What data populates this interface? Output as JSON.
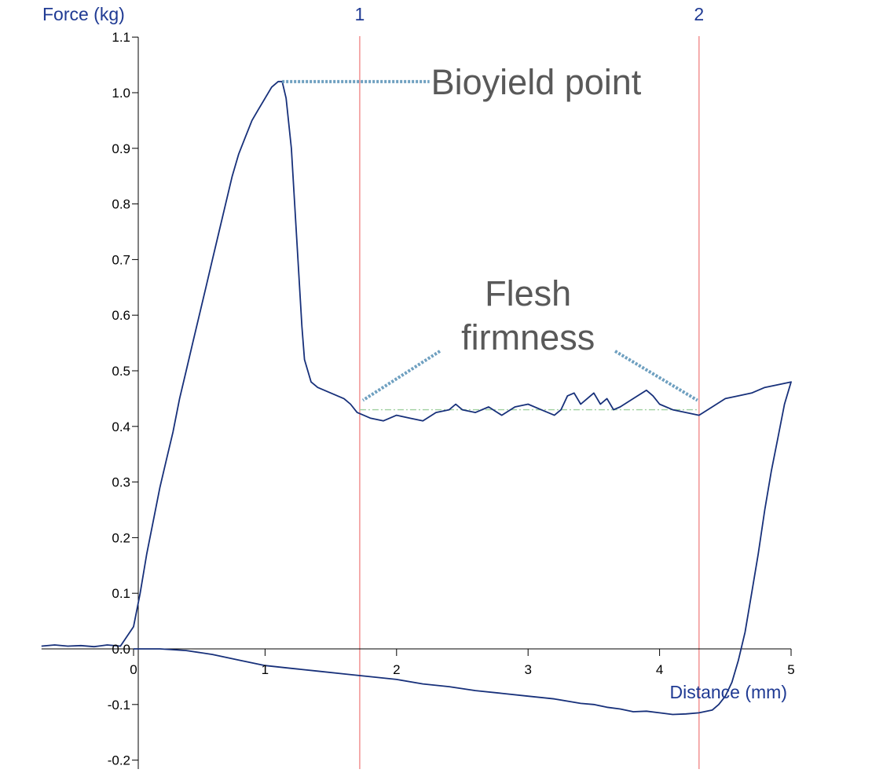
{
  "chart_data": {
    "type": "line",
    "title": "",
    "xlabel": "Distance (mm)",
    "ylabel": "Force (kg)",
    "xlim": [
      -0.7,
      5.05
    ],
    "ylim": [
      -0.2,
      1.1
    ],
    "x_ticks": [
      0,
      1,
      2,
      3,
      4,
      5
    ],
    "y_ticks": [
      -0.2,
      -0.1,
      0.0,
      0.1,
      0.2,
      0.3,
      0.4,
      0.5,
      0.6,
      0.7,
      0.8,
      0.9,
      1.0,
      1.1
    ],
    "x_tick_labels": [
      "0",
      "1",
      "2",
      "3",
      "4",
      "5"
    ],
    "y_tick_labels": [
      "-0.2",
      "-0.1",
      "0.0",
      "0.1",
      "0.2",
      "0.3",
      "0.4",
      "0.5",
      "0.6",
      "0.7",
      "0.8",
      "0.9",
      "1.0",
      "1.1"
    ],
    "grid": false,
    "series": [
      {
        "points": [
          [
            -0.7,
            0.005
          ],
          [
            -0.6,
            0.007
          ],
          [
            -0.5,
            0.005
          ],
          [
            -0.4,
            0.006
          ],
          [
            -0.3,
            0.004
          ],
          [
            -0.2,
            0.007
          ],
          [
            -0.1,
            0.005
          ],
          [
            0.0,
            0.04
          ],
          [
            0.05,
            0.1
          ],
          [
            0.1,
            0.17
          ],
          [
            0.15,
            0.23
          ],
          [
            0.2,
            0.29
          ],
          [
            0.25,
            0.34
          ],
          [
            0.3,
            0.39
          ],
          [
            0.35,
            0.45
          ],
          [
            0.4,
            0.5
          ],
          [
            0.45,
            0.55
          ],
          [
            0.5,
            0.6
          ],
          [
            0.55,
            0.65
          ],
          [
            0.6,
            0.7
          ],
          [
            0.65,
            0.75
          ],
          [
            0.7,
            0.8
          ],
          [
            0.75,
            0.85
          ],
          [
            0.8,
            0.89
          ],
          [
            0.85,
            0.92
          ],
          [
            0.9,
            0.95
          ],
          [
            0.95,
            0.97
          ],
          [
            1.0,
            0.99
          ],
          [
            1.05,
            1.01
          ],
          [
            1.1,
            1.02
          ],
          [
            1.13,
            1.02
          ],
          [
            1.16,
            0.99
          ],
          [
            1.2,
            0.9
          ],
          [
            1.24,
            0.74
          ],
          [
            1.28,
            0.58
          ],
          [
            1.3,
            0.52
          ],
          [
            1.35,
            0.48
          ],
          [
            1.4,
            0.47
          ],
          [
            1.5,
            0.46
          ],
          [
            1.6,
            0.45
          ],
          [
            1.65,
            0.44
          ],
          [
            1.7,
            0.425
          ],
          [
            1.75,
            0.42
          ],
          [
            1.8,
            0.415
          ],
          [
            1.9,
            0.41
          ],
          [
            2.0,
            0.42
          ],
          [
            2.1,
            0.415
          ],
          [
            2.2,
            0.41
          ],
          [
            2.3,
            0.425
          ],
          [
            2.4,
            0.43
          ],
          [
            2.45,
            0.44
          ],
          [
            2.5,
            0.43
          ],
          [
            2.6,
            0.425
          ],
          [
            2.7,
            0.435
          ],
          [
            2.8,
            0.42
          ],
          [
            2.9,
            0.435
          ],
          [
            3.0,
            0.44
          ],
          [
            3.1,
            0.43
          ],
          [
            3.2,
            0.42
          ],
          [
            3.25,
            0.43
          ],
          [
            3.3,
            0.455
          ],
          [
            3.35,
            0.46
          ],
          [
            3.4,
            0.44
          ],
          [
            3.5,
            0.46
          ],
          [
            3.55,
            0.44
          ],
          [
            3.6,
            0.45
          ],
          [
            3.65,
            0.43
          ],
          [
            3.7,
            0.435
          ],
          [
            3.8,
            0.45
          ],
          [
            3.9,
            0.465
          ],
          [
            3.95,
            0.455
          ],
          [
            4.0,
            0.44
          ],
          [
            4.1,
            0.43
          ],
          [
            4.2,
            0.425
          ],
          [
            4.3,
            0.42
          ],
          [
            4.4,
            0.435
          ],
          [
            4.5,
            0.45
          ],
          [
            4.6,
            0.455
          ],
          [
            4.7,
            0.46
          ],
          [
            4.8,
            0.47
          ],
          [
            4.9,
            0.475
          ],
          [
            5.0,
            0.48
          ],
          [
            5.0,
            0.48
          ],
          [
            4.95,
            0.44
          ],
          [
            4.9,
            0.38
          ],
          [
            4.85,
            0.32
          ],
          [
            4.8,
            0.25
          ],
          [
            4.75,
            0.17
          ],
          [
            4.7,
            0.1
          ],
          [
            4.65,
            0.03
          ],
          [
            4.6,
            -0.02
          ],
          [
            4.55,
            -0.06
          ],
          [
            4.5,
            -0.085
          ],
          [
            4.45,
            -0.1
          ],
          [
            4.4,
            -0.11
          ],
          [
            4.3,
            -0.115
          ],
          [
            4.2,
            -0.117
          ],
          [
            4.1,
            -0.118
          ],
          [
            4.0,
            -0.115
          ],
          [
            3.9,
            -0.112
          ],
          [
            3.8,
            -0.113
          ],
          [
            3.7,
            -0.108
          ],
          [
            3.6,
            -0.105
          ],
          [
            3.5,
            -0.1
          ],
          [
            3.4,
            -0.098
          ],
          [
            3.2,
            -0.09
          ],
          [
            3.0,
            -0.085
          ],
          [
            2.8,
            -0.08
          ],
          [
            2.6,
            -0.075
          ],
          [
            2.4,
            -0.068
          ],
          [
            2.2,
            -0.063
          ],
          [
            2.0,
            -0.055
          ],
          [
            1.8,
            -0.05
          ],
          [
            1.6,
            -0.045
          ],
          [
            1.4,
            -0.04
          ],
          [
            1.2,
            -0.035
          ],
          [
            1.0,
            -0.03
          ],
          [
            0.8,
            -0.02
          ],
          [
            0.6,
            -0.01
          ],
          [
            0.4,
            -0.003
          ],
          [
            0.2,
            0.0
          ],
          [
            0.0,
            0.0
          ]
        ]
      }
    ],
    "markers": [
      {
        "label": "1",
        "x": 1.72
      },
      {
        "label": "2",
        "x": 4.3
      }
    ],
    "average_line": {
      "value": 0.43,
      "x_range": [
        1.72,
        4.3
      ]
    },
    "annotations": [
      {
        "text": "Bioyield point",
        "target": [
          1.13,
          1.02
        ],
        "text_anchor": [
          2.25,
          1.02
        ]
      },
      {
        "text_lines": [
          "Flesh",
          "firmness"
        ],
        "targets": [
          [
            1.72,
            0.43
          ],
          [
            4.3,
            0.43
          ]
        ],
        "text_anchor": [
          3.0,
          0.52
        ]
      }
    ],
    "colors": {
      "curve": "#17307a",
      "axis_title": "#1f3a93",
      "marker_line": "#f08a8a",
      "dotted_connector": "#6fa0c0",
      "average_line": "#9fd09f",
      "annotation_text": "#595959",
      "axis": "#000000"
    }
  }
}
